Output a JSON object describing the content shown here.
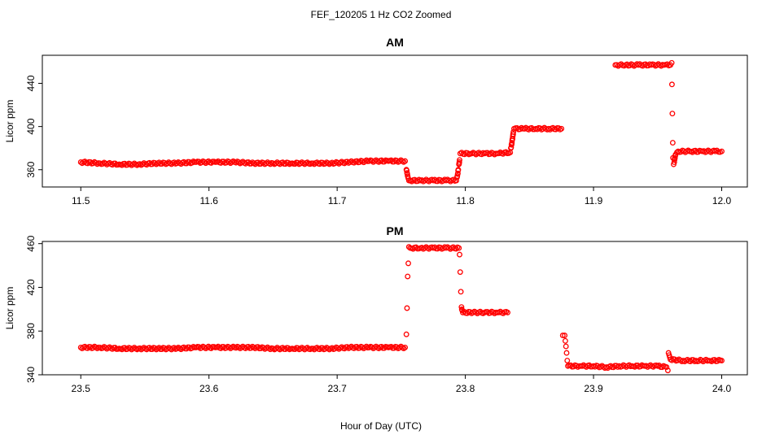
{
  "chart_data": {
    "type": "scatter",
    "title": "FEF_120205  1 Hz CO2 Zoomed",
    "xlabel": "Hour of Day (UTC)",
    "point_color": "#ff0000",
    "panels": [
      {
        "name": "AM",
        "title": "AM",
        "ylabel": "Licor ppm",
        "xlim": [
          11.47,
          12.02
        ],
        "ylim": [
          344,
          466
        ],
        "xticks": [
          11.5,
          11.6,
          11.7,
          11.8,
          11.9,
          12.0
        ],
        "xtick_labels": [
          "11.5",
          "11.6",
          "11.7",
          "11.8",
          "11.9",
          "12.0"
        ],
        "yticks": [
          360,
          400,
          440
        ],
        "ytick_labels": [
          "360",
          "400",
          "440"
        ],
        "segments": [
          {
            "x": [
              11.5,
              11.515,
              11.53,
              11.545,
              11.56,
              11.575,
              11.59,
              11.605,
              11.62,
              11.635,
              11.65,
              11.665,
              11.68,
              11.695,
              11.71,
              11.725,
              11.74,
              11.753
            ],
            "y": [
              367,
              366,
              365,
              365,
              366,
              366,
              367,
              367,
              367,
              366,
              366,
              366,
              366,
              366,
              367,
              368,
              368,
              368
            ]
          },
          {
            "x": [
              11.754,
              11.7545,
              11.755,
              11.7555
            ],
            "y": [
              360,
              357,
              354,
              352
            ]
          },
          {
            "x": [
              11.756,
              11.765,
              11.775,
              11.785,
              11.793
            ],
            "y": [
              350,
              350,
              350,
              350,
              350
            ]
          },
          {
            "x": [
              11.7935,
              11.794,
              11.7945,
              11.795,
              11.7955
            ],
            "y": [
              353,
              356,
              360,
              365,
              369
            ]
          },
          {
            "x": [
              11.796,
              11.805,
              11.815,
              11.825,
              11.835
            ],
            "y": [
              375,
              375,
              375,
              375,
              376
            ]
          },
          {
            "x": [
              11.8355,
              11.836,
              11.8365,
              11.837,
              11.8375
            ],
            "y": [
              380,
              383,
              387,
              391,
              395
            ]
          },
          {
            "x": [
              11.838,
              11.845,
              11.855,
              11.865,
              11.875
            ],
            "y": [
              398,
              398,
              398,
              398,
              398
            ]
          },
          {
            "x": [
              11.917,
              11.925,
              11.935,
              11.945,
              11.955,
              11.96
            ],
            "y": [
              457,
              457,
              457,
              457,
              457,
              457
            ]
          },
          {
            "x": [
              11.961,
              11.9612,
              11.9615,
              11.9618,
              11.962
            ],
            "y": [
              459,
              439,
              412,
              385,
              371
            ]
          },
          {
            "x": [
              11.9625,
              11.963,
              11.9635,
              11.964,
              11.965
            ],
            "y": [
              365,
              367,
              371,
              374,
              376
            ]
          },
          {
            "x": [
              11.966,
              11.975,
              11.985,
              11.995,
              12.0
            ],
            "y": [
              377,
              377,
              377,
              377,
              377
            ]
          }
        ]
      },
      {
        "name": "PM",
        "title": "PM",
        "ylabel": "Licor ppm",
        "xlim": [
          23.47,
          24.02
        ],
        "ylim": [
          340,
          462
        ],
        "xticks": [
          23.5,
          23.6,
          23.7,
          23.8,
          23.9,
          24.0
        ],
        "xtick_labels": [
          "23.5",
          "23.6",
          "23.7",
          "23.8",
          "23.9",
          "24.0"
        ],
        "yticks": [
          340,
          380,
          420,
          460
        ],
        "ytick_labels": [
          "340",
          "380",
          "420",
          "460"
        ],
        "segments": [
          {
            "x": [
              23.5,
              23.515,
              23.53,
              23.545,
              23.56,
              23.575,
              23.59,
              23.605,
              23.62,
              23.635,
              23.65,
              23.665,
              23.68,
              23.695,
              23.71,
              23.725,
              23.74,
              23.753
            ],
            "y": [
              365,
              365,
              364,
              364,
              364,
              364,
              365,
              365,
              365,
              365,
              364,
              364,
              364,
              364,
              365,
              365,
              365,
              365
            ]
          },
          {
            "x": [
              23.754,
              23.7545,
              23.755,
              23.7555,
              23.756
            ],
            "y": [
              377,
              401,
              430,
              442,
              457
            ]
          },
          {
            "x": [
              23.757,
              23.765,
              23.775,
              23.785,
              23.795
            ],
            "y": [
              456,
              456,
              456,
              456,
              456
            ]
          },
          {
            "x": [
              23.7955,
              23.796,
              23.7965,
              23.797,
              23.7975
            ],
            "y": [
              450,
              434,
              416,
              402,
              399
            ]
          },
          {
            "x": [
              23.798,
              23.806,
              23.815,
              23.825,
              23.833
            ],
            "y": [
              397,
              397,
              397,
              397,
              397
            ]
          },
          {
            "x": [
              23.876,
              23.8775,
              23.878,
              23.8785,
              23.879,
              23.8795
            ],
            "y": [
              376,
              376,
              371,
              366,
              360,
              353
            ]
          },
          {
            "x": [
              23.88,
              23.89,
              23.9,
              23.91,
              23.92,
              23.93,
              23.94,
              23.95,
              23.957
            ],
            "y": [
              348,
              348,
              348,
              347,
              348,
              348,
              348,
              348,
              347
            ]
          },
          {
            "x": [
              23.958,
              23.9585,
              23.959,
              23.9595
            ],
            "y": [
              344,
              360,
              358,
              356
            ]
          },
          {
            "x": [
              23.96,
              23.97,
              23.98,
              23.99,
              24.0
            ],
            "y": [
              354,
              353,
              353,
              353,
              353
            ]
          }
        ]
      }
    ]
  }
}
